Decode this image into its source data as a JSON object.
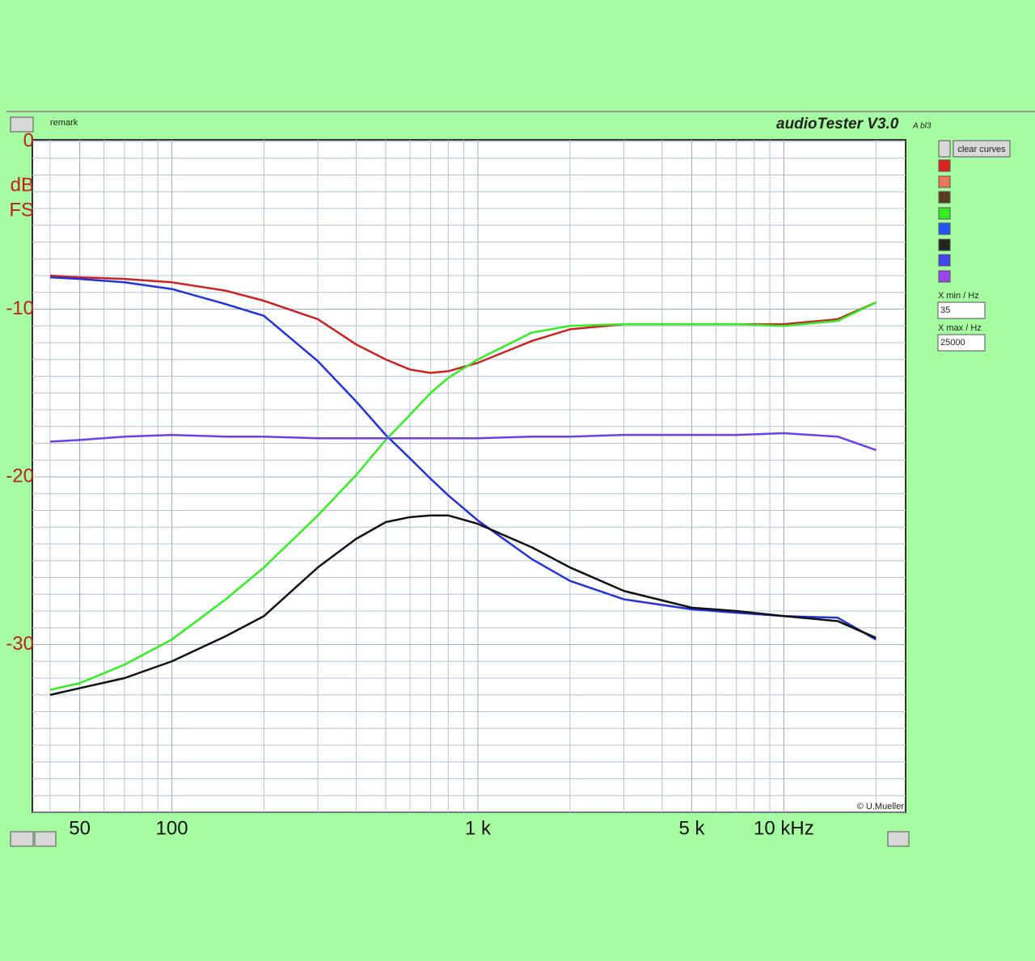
{
  "ui": {
    "remark": "remark",
    "app_name": "audioTester V3.0",
    "app_build": "A bl3",
    "clear_button": "clear curves",
    "xmin_label": "X min / Hz",
    "xmax_label": "X max / Hz",
    "copyright": "© U.Mueller"
  },
  "chart_data": {
    "type": "line",
    "ylabel_lines": [
      "dB",
      "FS"
    ],
    "log_x": true,
    "grid": true,
    "xlim": [
      35,
      25000
    ],
    "ylim": [
      -40,
      0
    ],
    "xticks": [
      50,
      100,
      {
        "value": 1000,
        "label": "1 k"
      },
      {
        "value": 5000,
        "label": "5 k"
      },
      {
        "value": 10000,
        "label": "10 kHz"
      }
    ],
    "yticks": [
      0,
      -10,
      -20,
      -30
    ],
    "x": [
      40,
      50,
      70,
      100,
      150,
      200,
      300,
      400,
      500,
      600,
      700,
      800,
      1000,
      1500,
      2000,
      3000,
      5000,
      7000,
      10000,
      15000,
      20000
    ],
    "series": [
      {
        "color": "#cc2222",
        "values": [
          -8.0,
          -8.1,
          -8.2,
          -8.4,
          -8.9,
          -9.5,
          -10.6,
          -12.1,
          -13.0,
          -13.6,
          -13.8,
          -13.7,
          -13.2,
          -11.9,
          -11.2,
          -10.9,
          -10.9,
          -10.9,
          -10.9,
          -10.6,
          -9.6
        ]
      },
      {
        "color": "#2233dd",
        "values": [
          -8.1,
          -8.2,
          -8.4,
          -8.8,
          -9.7,
          -10.4,
          -13.1,
          -15.5,
          -17.5,
          -18.9,
          -20.1,
          -21.1,
          -22.6,
          -24.9,
          -26.2,
          -27.3,
          -27.9,
          -28.1,
          -28.3,
          -28.4,
          -29.7
        ]
      },
      {
        "color": "#33ee22",
        "values": [
          -32.7,
          -32.3,
          -31.2,
          -29.7,
          -27.3,
          -25.4,
          -22.3,
          -19.9,
          -17.8,
          -16.3,
          -15.0,
          -14.1,
          -13.0,
          -11.4,
          -11.0,
          -10.9,
          -10.9,
          -10.9,
          -11.0,
          -10.7,
          -9.6
        ]
      },
      {
        "color": "#111111",
        "values": [
          -33.0,
          -32.6,
          -32.0,
          -31.0,
          -29.5,
          -28.3,
          -25.4,
          -23.7,
          -22.7,
          -22.4,
          -22.3,
          -22.3,
          -22.8,
          -24.2,
          -25.4,
          -26.8,
          -27.8,
          -28.0,
          -28.3,
          -28.6,
          -29.6
        ]
      },
      {
        "color": "#6a3ff0",
        "values": [
          -17.9,
          -17.8,
          -17.6,
          -17.5,
          -17.6,
          -17.6,
          -17.7,
          -17.7,
          -17.7,
          -17.7,
          -17.7,
          -17.7,
          -17.7,
          -17.6,
          -17.6,
          -17.5,
          -17.5,
          -17.5,
          -17.4,
          -17.6,
          -18.4
        ]
      }
    ]
  }
}
